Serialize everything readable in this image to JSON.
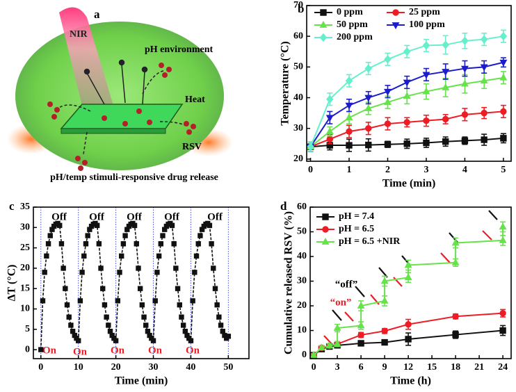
{
  "illustration": {
    "label": "a",
    "beam": "NIR",
    "medium": "pH environment",
    "heat": "Heat",
    "drug": "RSV",
    "caption": "pH/temp stimuli-responsive drug release"
  },
  "chart_data": [
    {
      "type": "line",
      "panel_label": "b",
      "x_label": "Time (min)",
      "y_label": "Temperature (°C)",
      "xlim": [
        -0.1,
        5.2
      ],
      "ylim": [
        19.3,
        70
      ],
      "xticks": [
        0,
        1,
        2,
        3,
        4,
        5
      ],
      "yticks": [
        20,
        30,
        40,
        50,
        60,
        70
      ],
      "legend": "upper left",
      "legend_columns": 2,
      "x": [
        0,
        0.5,
        1,
        1.5,
        2,
        2.5,
        3,
        3.5,
        4,
        4.5,
        5
      ],
      "series": [
        {
          "name": "0 ppm",
          "color": "#111111",
          "marker": "square",
          "values": [
            24,
            24.5,
            24.5,
            24.6,
            24.8,
            25,
            25.3,
            25.7,
            26,
            26.3,
            26.8
          ],
          "errors": [
            1.5,
            1.5,
            2,
            2,
            1,
            1.5,
            1.5,
            1.5,
            1.2,
            1.8,
            1.5
          ]
        },
        {
          "name": "25 ppm",
          "color": "#ee1c24",
          "marker": "circle",
          "values": [
            24,
            26.5,
            29,
            30,
            31.5,
            32,
            32.5,
            33,
            34.5,
            35,
            35.5
          ],
          "errors": [
            1.5,
            1.5,
            2,
            2,
            2,
            1.5,
            1.8,
            1.5,
            2,
            1.8,
            2
          ]
        },
        {
          "name": "50 ppm",
          "color": "#66e24a",
          "marker": "triangle",
          "values": [
            24,
            29,
            33.5,
            36.5,
            38.5,
            40.5,
            42,
            43.3,
            44.5,
            45.5,
            46.5
          ],
          "errors": [
            1.5,
            1.5,
            2,
            2,
            2,
            2.5,
            2.5,
            3,
            3,
            2.5,
            2
          ]
        },
        {
          "name": "100 ppm",
          "color": "#1c1ccc",
          "marker": "triangle-down",
          "values": [
            24,
            33.5,
            37.5,
            40,
            42,
            45,
            47.5,
            48.5,
            49.5,
            50,
            51.5
          ],
          "errors": [
            1.5,
            2,
            2,
            2,
            2,
            2,
            2,
            2.5,
            2.5,
            2,
            1.5
          ]
        },
        {
          "name": "200 ppm",
          "color": "#66efcd",
          "marker": "diamond",
          "values": [
            24,
            39.5,
            45.5,
            49.5,
            52.5,
            55,
            57,
            57.2,
            58.5,
            59,
            60
          ],
          "errors": [
            1.5,
            2,
            2,
            2,
            2,
            2,
            2,
            3,
            2.5,
            2,
            2
          ]
        }
      ]
    },
    {
      "type": "line",
      "panel_label": "c",
      "x_label": "Time (min)",
      "y_label": "ΔT (°C)",
      "xlim": [
        -2,
        55.5
      ],
      "ylim": [
        -2.2,
        35
      ],
      "xticks": [
        0,
        10,
        20,
        30,
        40,
        50
      ],
      "yticks": [
        0,
        5,
        10,
        15,
        20,
        25,
        30,
        35
      ],
      "vlines": [
        0,
        10,
        20,
        30,
        40,
        50
      ],
      "vline_color": "#3b4ee0",
      "line_style": "dashed",
      "annotations": [
        "Off",
        "Off",
        "Off",
        "Off",
        "Off",
        "On",
        "On",
        "On",
        "On",
        "On"
      ],
      "x": [
        0,
        0.5,
        1,
        1.5,
        2,
        2.5,
        3,
        3.5,
        4,
        4.5,
        5,
        5.5,
        6,
        6.5,
        7,
        7.5,
        8,
        8.5,
        9,
        9.5,
        10,
        10.5,
        11,
        11.5,
        12,
        12.5,
        13,
        13.5,
        14,
        14.5,
        15,
        15.5,
        16,
        16.5,
        17,
        17.5,
        18,
        18.5,
        19,
        19.5,
        20,
        20.5,
        21,
        21.5,
        22,
        22.5,
        23,
        23.5,
        24,
        24.5,
        25,
        25.5,
        26,
        26.5,
        27,
        27.5,
        28,
        28.5,
        29,
        29.5,
        30,
        30.5,
        31,
        31.5,
        32,
        32.5,
        33,
        33.5,
        34,
        34.5,
        35,
        35.5,
        36,
        36.5,
        37,
        37.5,
        38,
        38.5,
        39,
        39.5,
        40,
        40.5,
        41,
        41.5,
        42,
        42.5,
        43,
        43.5,
        44,
        44.5,
        45,
        45.5,
        46,
        46.5,
        47,
        47.5,
        48,
        48.5,
        49,
        49.5,
        50
      ],
      "series": [
        {
          "name": null,
          "color": "#111111",
          "marker": "square",
          "values": [
            0,
            12,
            19,
            23,
            26,
            28,
            29.5,
            30.3,
            30.8,
            31,
            30.5,
            26,
            20,
            15,
            11,
            8,
            6,
            4.5,
            3.5,
            2.8,
            2.2,
            12,
            19,
            23,
            26,
            28,
            29.5,
            30.3,
            30.8,
            31,
            30.5,
            26,
            20,
            15,
            11,
            8,
            6,
            4.5,
            3.5,
            2.8,
            2.2,
            12,
            19,
            23,
            26,
            28,
            29.5,
            30.3,
            30.8,
            31,
            30.5,
            26,
            20,
            15,
            11,
            8,
            6,
            4.5,
            3.5,
            2.8,
            2.2,
            12,
            19,
            23,
            26,
            28,
            29.5,
            30.3,
            30.8,
            31,
            30.5,
            26,
            20,
            15,
            11,
            8,
            6,
            4.5,
            3.5,
            2.8,
            2.2,
            12,
            19,
            23,
            26,
            28,
            29.5,
            30.3,
            30.8,
            31,
            30.5,
            26,
            20,
            15,
            11,
            8,
            6,
            4.5,
            3.5,
            2.8,
            3.3
          ]
        }
      ]
    },
    {
      "type": "line",
      "panel_label": "d",
      "x_label": "Time (h)",
      "y_label": "Cumulative released RSV (%)",
      "xlim": [
        -0.45,
        25.05
      ],
      "ylim": [
        -1.4,
        60
      ],
      "xticks": [
        0,
        3,
        6,
        9,
        12,
        15,
        18,
        21,
        24
      ],
      "yticks": [
        0,
        10,
        20,
        30,
        40,
        50,
        60
      ],
      "legend": "upper left",
      "legend_columns": 1,
      "annotations": [
        "“off”",
        "“on”"
      ],
      "series": [
        {
          "name": "pH = 7.4",
          "color": "#111111",
          "marker": "square",
          "x": [
            0,
            1,
            2,
            3,
            6,
            9,
            12,
            18,
            24
          ],
          "values": [
            0,
            2.5,
            3.5,
            4,
            4.8,
            5.2,
            6.5,
            8.3,
            10
          ],
          "errors": [
            0.5,
            0.8,
            0.8,
            1,
            1,
            1,
            2.5,
            1.5,
            2
          ]
        },
        {
          "name": "pH = 6.5",
          "color": "#ee1c24",
          "marker": "circle",
          "x": [
            0,
            1,
            2,
            3,
            6,
            9,
            12,
            18,
            24
          ],
          "values": [
            0,
            3,
            3.8,
            4.5,
            8.2,
            9.8,
            12.5,
            15.7,
            17
          ],
          "errors": [
            0.5,
            0.8,
            0.8,
            1,
            1,
            1,
            2,
            1,
            1.5
          ]
        },
        {
          "name": "pH = 6.5 +NIR",
          "color": "#66e24a",
          "marker": "triangle",
          "x": [
            0,
            1,
            2,
            3,
            3,
            6,
            6,
            9,
            9,
            12,
            12,
            18,
            18,
            24,
            24
          ],
          "values": [
            0,
            3,
            3.8,
            4.5,
            11,
            12,
            20,
            22,
            30,
            31.5,
            36.5,
            37.5,
            45.5,
            46.5,
            52
          ],
          "errors": [
            0.5,
            0.8,
            0.8,
            1,
            1.5,
            1.5,
            2,
            2,
            2,
            2,
            2,
            1.5,
            2,
            2,
            2
          ]
        }
      ]
    }
  ]
}
